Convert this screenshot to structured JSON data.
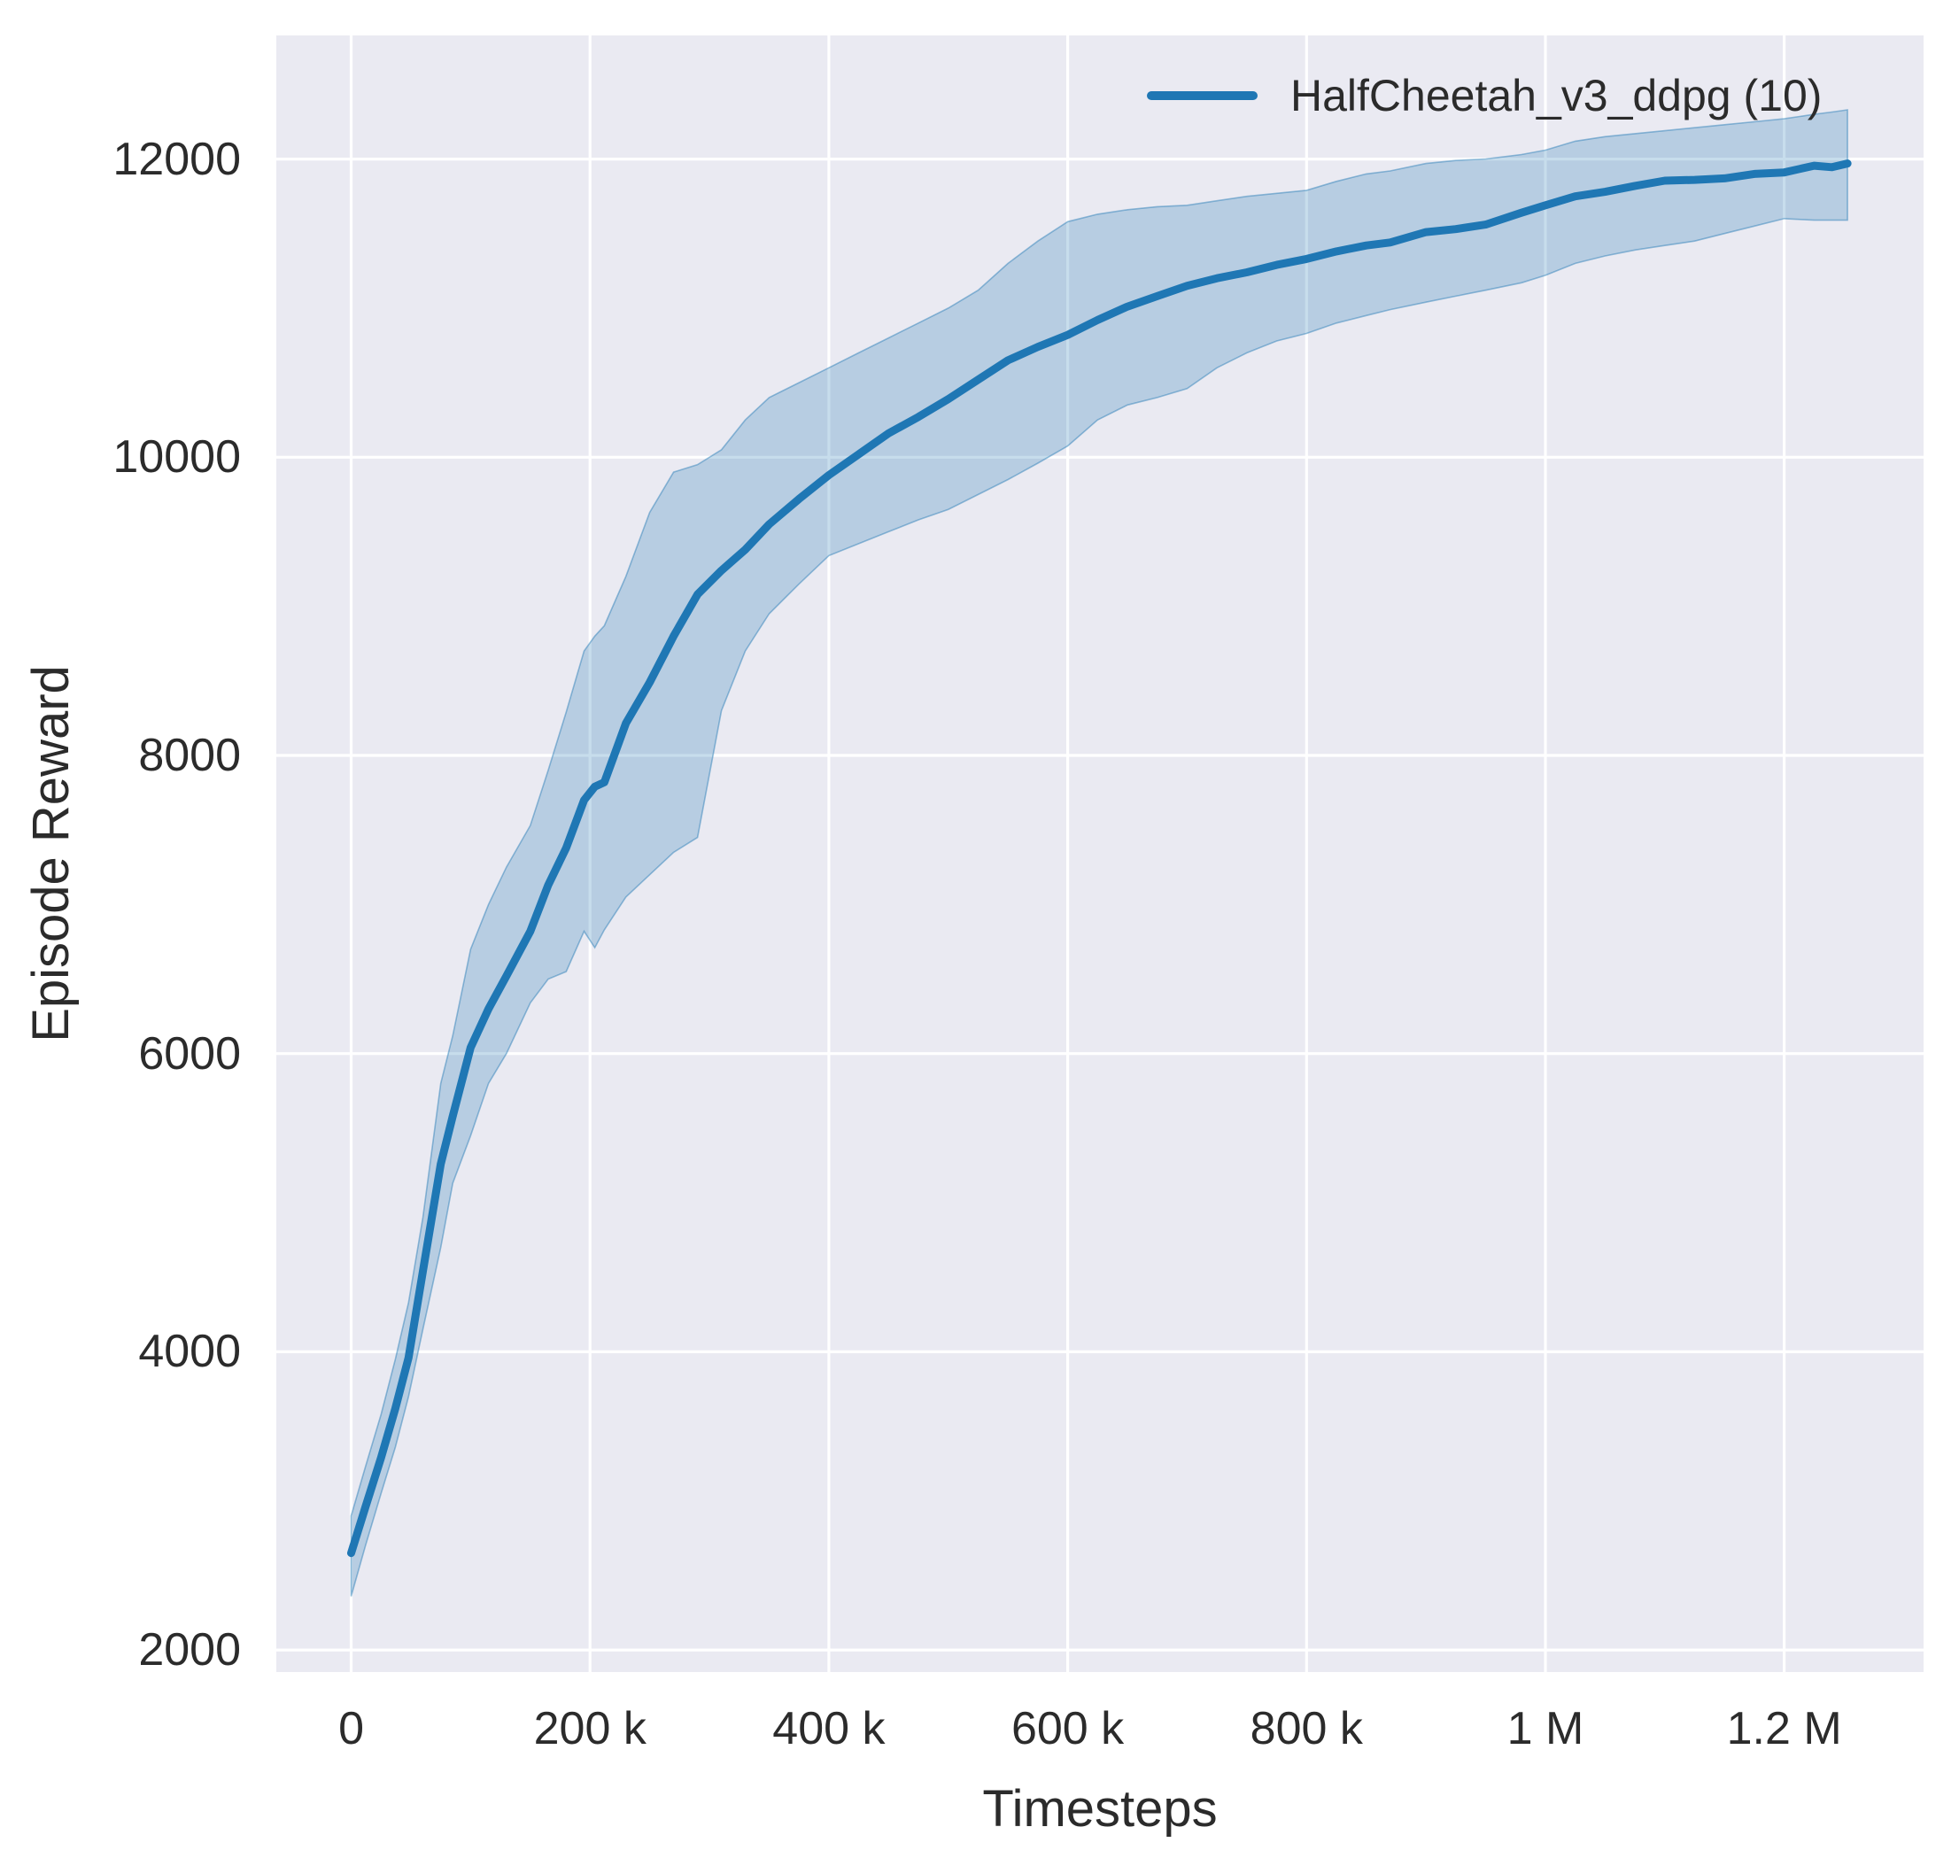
{
  "chart_data": {
    "type": "line",
    "title": "",
    "xlabel": "Timesteps",
    "ylabel": "Episode Reward",
    "legend_position": "upper right",
    "grid": true,
    "colors": {
      "figure_bg": "#ffffff",
      "plot_bg": "#eaeaf2",
      "gridline": "#ffffff",
      "text": "#2b2b2b",
      "series_line": "#1f77b4",
      "band_fill": "rgba(31,119,180,0.25)",
      "band_edge": "rgba(31,119,180,0.45)"
    },
    "xlim": [
      -62700,
      1316700
    ],
    "ylim": [
      1852,
      12829
    ],
    "xticks": [
      {
        "v": 0,
        "label": "0"
      },
      {
        "v": 200000,
        "label": "200 k"
      },
      {
        "v": 400000,
        "label": "400 k"
      },
      {
        "v": 600000,
        "label": "600 k"
      },
      {
        "v": 800000,
        "label": "800 k"
      },
      {
        "v": 1000000,
        "label": "1 M"
      },
      {
        "v": 1200000,
        "label": "1.2 M"
      }
    ],
    "yticks": [
      {
        "v": 2000,
        "label": "2000"
      },
      {
        "v": 4000,
        "label": "4000"
      },
      {
        "v": 6000,
        "label": "6000"
      },
      {
        "v": 8000,
        "label": "8000"
      },
      {
        "v": 10000,
        "label": "10000"
      },
      {
        "v": 12000,
        "label": "12000"
      }
    ],
    "legend": [
      {
        "label": "HalfCheetah_v3_ddpg (10)",
        "color": "#1f77b4"
      }
    ],
    "series": [
      {
        "name": "HalfCheetah_v3_ddpg (10)",
        "color": "#1f77b4",
        "x": [
          0,
          12000,
          25000,
          37000,
          48000,
          60000,
          75000,
          85000,
          100000,
          115000,
          130000,
          150000,
          165000,
          180000,
          195000,
          204000,
          212000,
          230000,
          250000,
          270000,
          290000,
          310000,
          330000,
          350000,
          375000,
          400000,
          425000,
          450000,
          475000,
          500000,
          525000,
          550000,
          575000,
          600000,
          625000,
          650000,
          675000,
          700000,
          725000,
          750000,
          775000,
          800000,
          825000,
          850000,
          870000,
          900000,
          925000,
          950000,
          980000,
          1000000,
          1025000,
          1050000,
          1075000,
          1100000,
          1125000,
          1150000,
          1175000,
          1200000,
          1225000,
          1240000,
          1253000
        ],
        "mean": [
          2650,
          2960,
          3290,
          3620,
          3960,
          4540,
          5260,
          5580,
          6040,
          6300,
          6520,
          6820,
          7130,
          7380,
          7700,
          7790,
          7820,
          8215,
          8490,
          8800,
          9080,
          9240,
          9380,
          9550,
          9720,
          9880,
          10020,
          10160,
          10270,
          10390,
          10520,
          10650,
          10740,
          10820,
          10920,
          11010,
          11080,
          11150,
          11200,
          11240,
          11290,
          11330,
          11380,
          11420,
          11440,
          11510,
          11530,
          11560,
          11640,
          11690,
          11750,
          11780,
          11820,
          11855,
          11860,
          11870,
          11900,
          11910,
          11955,
          11945,
          11970
        ],
        "lo": [
          2360,
          2700,
          3050,
          3360,
          3700,
          4150,
          4700,
          5130,
          5450,
          5800,
          6000,
          6340,
          6500,
          6550,
          6820,
          6710,
          6830,
          7050,
          7200,
          7350,
          7450,
          8300,
          8700,
          8950,
          9150,
          9340,
          9420,
          9500,
          9580,
          9650,
          9750,
          9850,
          9960,
          10075,
          10250,
          10350,
          10400,
          10460,
          10600,
          10700,
          10780,
          10830,
          10900,
          10950,
          10990,
          11040,
          11080,
          11120,
          11170,
          11220,
          11300,
          11350,
          11390,
          11420,
          11450,
          11500,
          11550,
          11600,
          11590,
          11590,
          11590
        ],
        "hi": [
          2900,
          3230,
          3580,
          3950,
          4330,
          4900,
          5800,
          6120,
          6700,
          7000,
          7250,
          7530,
          7900,
          8290,
          8700,
          8800,
          8870,
          9200,
          9630,
          9900,
          9950,
          10050,
          10250,
          10400,
          10500,
          10600,
          10700,
          10800,
          10900,
          11000,
          11120,
          11300,
          11450,
          11580,
          11630,
          11660,
          11680,
          11690,
          11720,
          11750,
          11770,
          11790,
          11850,
          11900,
          11920,
          11970,
          11990,
          12000,
          12030,
          12060,
          12120,
          12150,
          12170,
          12190,
          12210,
          12230,
          12250,
          12270,
          12300,
          12315,
          12330
        ]
      }
    ]
  }
}
